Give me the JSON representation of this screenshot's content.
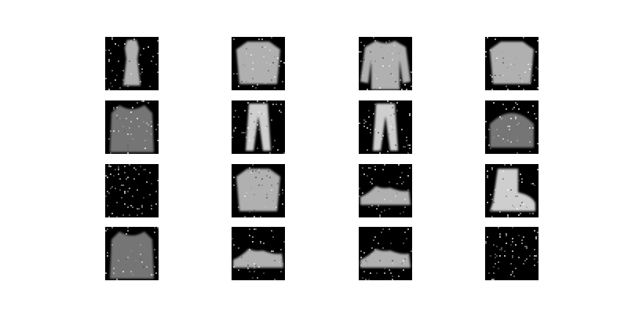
{
  "figure": {
    "background": "#ffffff",
    "tile_background": "#000000",
    "grid": {
      "rows": 4,
      "cols": 4
    },
    "tiles": [
      {
        "row": 1,
        "col": 1,
        "depicts": "dress"
      },
      {
        "row": 1,
        "col": 2,
        "depicts": "shirt"
      },
      {
        "row": 1,
        "col": 3,
        "depicts": "pullover"
      },
      {
        "row": 1,
        "col": 4,
        "depicts": "shirt"
      },
      {
        "row": 2,
        "col": 1,
        "depicts": "coat"
      },
      {
        "row": 2,
        "col": 2,
        "depicts": "trouser"
      },
      {
        "row": 2,
        "col": 3,
        "depicts": "trouser"
      },
      {
        "row": 2,
        "col": 4,
        "depicts": "bag"
      },
      {
        "row": 3,
        "col": 1,
        "depicts": "noise"
      },
      {
        "row": 3,
        "col": 2,
        "depicts": "shirt"
      },
      {
        "row": 3,
        "col": 3,
        "depicts": "sneaker"
      },
      {
        "row": 3,
        "col": 4,
        "depicts": "ankle-boot"
      },
      {
        "row": 4,
        "col": 1,
        "depicts": "coat"
      },
      {
        "row": 4,
        "col": 2,
        "depicts": "sneaker"
      },
      {
        "row": 4,
        "col": 3,
        "depicts": "sneaker"
      },
      {
        "row": 4,
        "col": 4,
        "depicts": "noise"
      }
    ]
  }
}
